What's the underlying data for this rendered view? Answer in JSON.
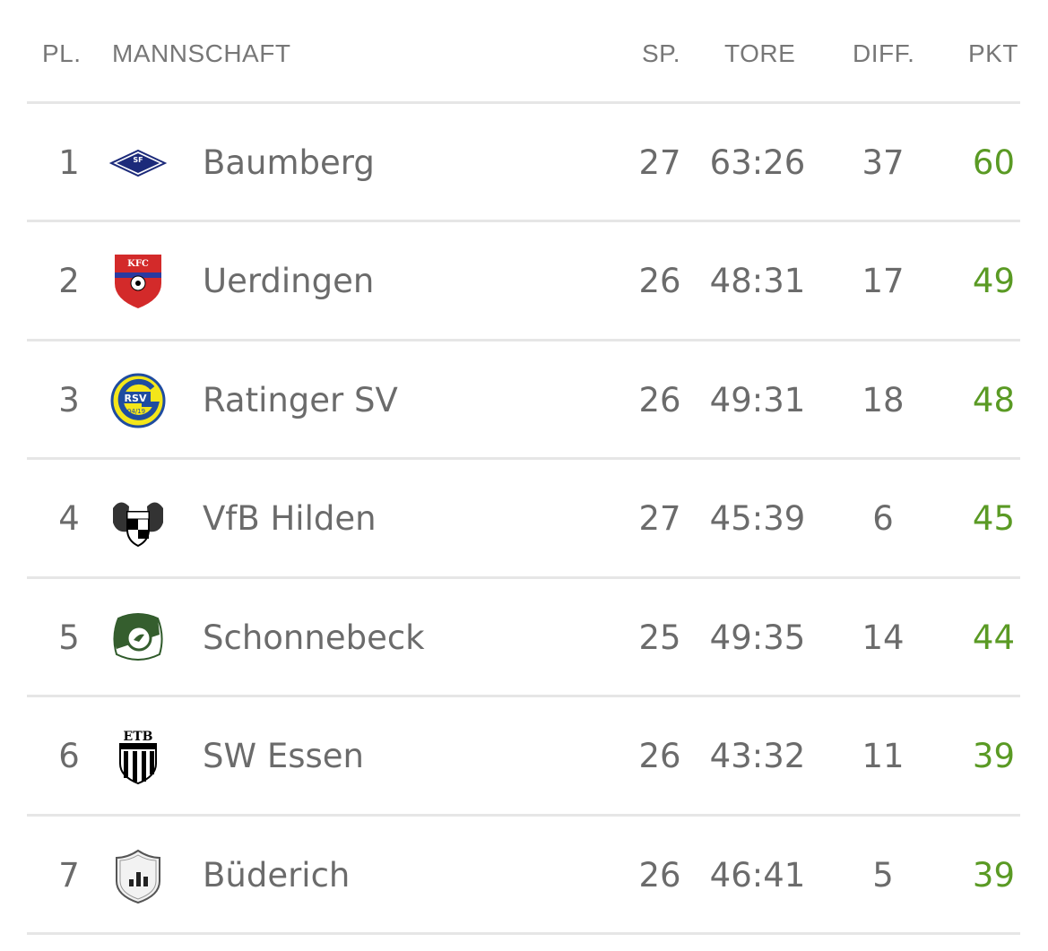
{
  "header": {
    "pl": "PL.",
    "team": "MANNSCHAFT",
    "sp": "SP.",
    "tore": "TORE",
    "diff": "DIFF.",
    "pkt": "PKT"
  },
  "colors": {
    "points": "#5a9a24",
    "text": "#6b6b6b",
    "divider": "#e6e6e6"
  },
  "rows": [
    {
      "pl": "1",
      "team": "Baumberg",
      "sp": "27",
      "tore": "63:26",
      "diff": "37",
      "pkt": "60",
      "logo": "sf-baumberg-crest",
      "logo_text": "SF"
    },
    {
      "pl": "2",
      "team": "Uerdingen",
      "sp": "26",
      "tore": "48:31",
      "diff": "17",
      "pkt": "49",
      "logo": "kfc-uerdingen-crest",
      "logo_text": "KFC"
    },
    {
      "pl": "3",
      "team": "Ratinger SV",
      "sp": "26",
      "tore": "49:31",
      "diff": "18",
      "pkt": "48",
      "logo": "ratinger-sv-crest",
      "logo_text": "RSV 04/19"
    },
    {
      "pl": "4",
      "team": "VfB Hilden",
      "sp": "27",
      "tore": "45:39",
      "diff": "6",
      "pkt": "45",
      "logo": "vfb-hilden-crest"
    },
    {
      "pl": "5",
      "team": "Schonnebeck",
      "sp": "25",
      "tore": "49:35",
      "diff": "14",
      "pkt": "44",
      "logo": "schonnebeck-crest"
    },
    {
      "pl": "6",
      "team": "SW Essen",
      "sp": "26",
      "tore": "43:32",
      "diff": "11",
      "pkt": "39",
      "logo": "etb-sw-essen-crest",
      "logo_text": "ETB"
    },
    {
      "pl": "7",
      "team": "Büderich",
      "sp": "26",
      "tore": "46:41",
      "diff": "5",
      "pkt": "39",
      "logo": "generic-shield-crest"
    }
  ]
}
